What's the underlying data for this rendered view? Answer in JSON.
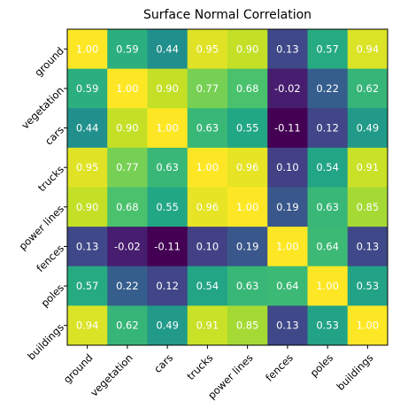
{
  "chart_data": {
    "type": "heatmap",
    "title": "Surface Normal Correlation",
    "xlabel": "",
    "ylabel": "",
    "x_categories": [
      "ground",
      "vegetation",
      "cars",
      "trucks",
      "power lines",
      "fences",
      "poles",
      "buildings"
    ],
    "y_categories": [
      "ground",
      "vegetation",
      "cars",
      "trucks",
      "power lines",
      "fences",
      "poles",
      "buildings"
    ],
    "values": [
      [
        1.0,
        0.59,
        0.44,
        0.95,
        0.9,
        0.13,
        0.57,
        0.94
      ],
      [
        0.59,
        1.0,
        0.9,
        0.77,
        0.68,
        -0.02,
        0.22,
        0.62
      ],
      [
        0.44,
        0.9,
        1.0,
        0.63,
        0.55,
        -0.11,
        0.12,
        0.49
      ],
      [
        0.95,
        0.77,
        0.63,
        1.0,
        0.96,
        0.1,
        0.54,
        0.91
      ],
      [
        0.9,
        0.68,
        0.55,
        0.96,
        1.0,
        0.19,
        0.63,
        0.85
      ],
      [
        0.13,
        -0.02,
        -0.11,
        0.1,
        0.19,
        1.0,
        0.64,
        0.13
      ],
      [
        0.57,
        0.22,
        0.12,
        0.54,
        0.63,
        0.64,
        1.0,
        0.53
      ],
      [
        0.94,
        0.62,
        0.49,
        0.91,
        0.85,
        0.13,
        0.53,
        1.0
      ]
    ],
    "value_format": "2 decimals",
    "colormap": "viridis",
    "color_range": [
      -0.11,
      1.0
    ],
    "colorbar": false,
    "grid": false
  }
}
